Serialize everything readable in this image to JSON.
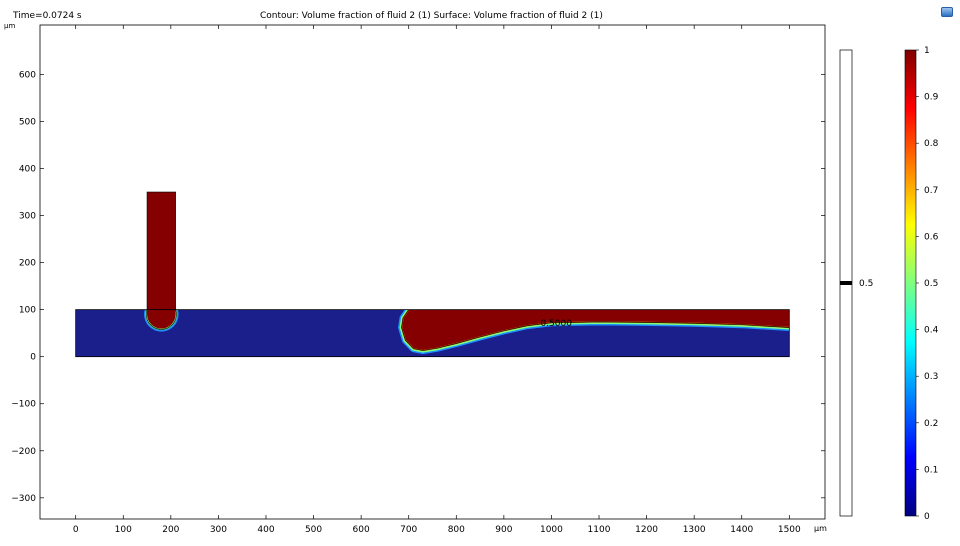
{
  "header": {
    "time_label": "Time=0.0724 s",
    "title": "Contour: Volume fraction of fluid 2 (1)  Surface: Volume fraction of fluid 2 (1)",
    "unit_top": "µm",
    "unit_x": "µm"
  },
  "chart_data": {
    "type": "heatmap",
    "title": "Contour: Volume fraction of fluid 2 (1)  Surface: Volume fraction of fluid 2 (1)",
    "xlabel": "µm",
    "ylabel": "µm",
    "xlim": [
      -75,
      1575
    ],
    "ylim": [
      -345,
      705
    ],
    "x_ticks": [
      0,
      100,
      200,
      300,
      400,
      500,
      600,
      700,
      800,
      900,
      1000,
      1100,
      1200,
      1300,
      1400,
      1500
    ],
    "y_ticks": [
      -300,
      -200,
      -100,
      0,
      100,
      200,
      300,
      400,
      500,
      600
    ],
    "geometry": {
      "main_channel": {
        "x": [
          0,
          1500
        ],
        "y": [
          0,
          100
        ]
      },
      "side_inlet": {
        "x": [
          150,
          210
        ],
        "y": [
          100,
          350
        ]
      }
    },
    "fluid2_droplet": {
      "center_x": 180,
      "center_y": 90,
      "radius": 30
    },
    "interface_curve_x": [
      1500,
      1400,
      1300,
      1200,
      1100,
      1000,
      950,
      900,
      850,
      800,
      760,
      730,
      710,
      693,
      685,
      688,
      700
    ],
    "interface_curve_y": [
      62,
      68,
      71,
      73,
      74,
      72,
      66,
      55,
      42,
      28,
      18,
      13,
      17,
      35,
      62,
      82,
      100
    ],
    "contour": {
      "level": 0.5,
      "label": "0.5000",
      "label_x": 1010,
      "label_y": 72
    },
    "contour_legend": {
      "level_label": "0.5"
    },
    "colorbar": {
      "min": 0,
      "max": 1,
      "ticks": [
        "0",
        "0.1",
        "0.2",
        "0.3",
        "0.4",
        "0.5",
        "0.6",
        "0.7",
        "0.8",
        "0.9",
        "1"
      ],
      "colormap": [
        "#00007f",
        "#0000ff",
        "#007fff",
        "#00ffff",
        "#7fff7f",
        "#ffff00",
        "#ff7f00",
        "#ff0000",
        "#7f0000"
      ]
    },
    "colors": {
      "fluid1": "#1a1f8c",
      "fluid2": "#850000",
      "contour": "#000000"
    }
  }
}
